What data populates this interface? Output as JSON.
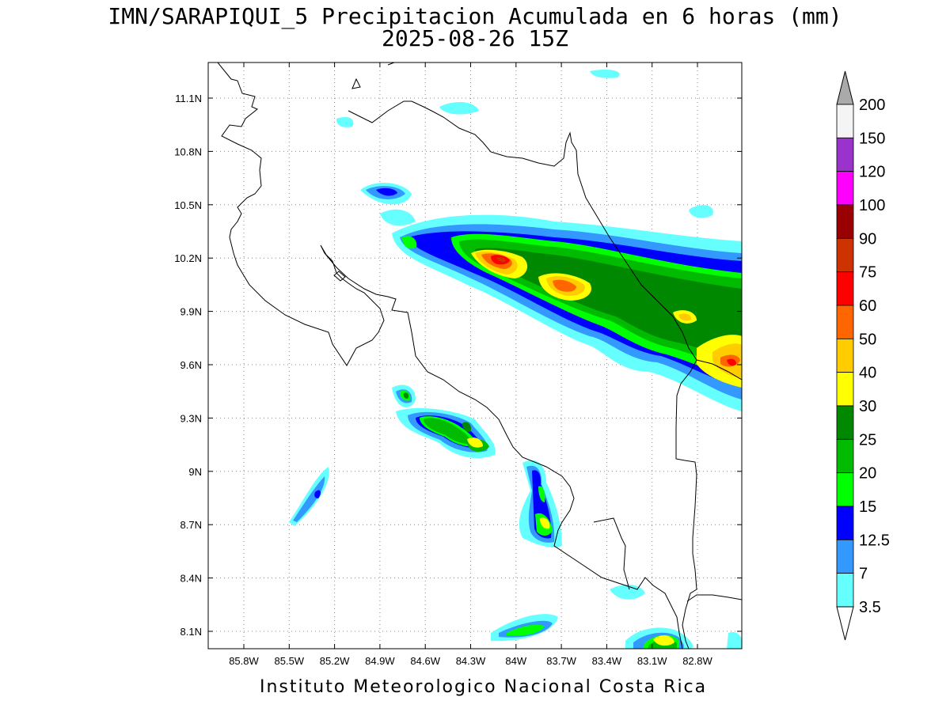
{
  "title": {
    "line1": "IMN/SARAPIQUI_5 Precipitacion Acumulada en 6 horas (mm)",
    "line2": "2025-08-26 15Z"
  },
  "footer": "Instituto Meteorologico Nacional Costa Rica",
  "axes": {
    "lon_labels": [
      "85.8W",
      "85.5W",
      "85.2W",
      "84.9W",
      "84.6W",
      "84.3W",
      "84W",
      "83.7W",
      "83.4W",
      "83.1W",
      "82.8W"
    ],
    "lat_labels": [
      "11.1N",
      "10.8N",
      "10.5N",
      "10.2N",
      "9.9N",
      "9.6N",
      "9.3N",
      "9N",
      "8.7N",
      "8.4N",
      "8.1N"
    ]
  },
  "colorbar": {
    "labels": [
      "200",
      "150",
      "120",
      "100",
      "90",
      "75",
      "60",
      "50",
      "40",
      "30",
      "25",
      "20",
      "15",
      "12.5",
      "7",
      "3.5"
    ],
    "colors": [
      "#f4f4f4",
      "#9933cc",
      "#ff00ff",
      "#990000",
      "#cc3300",
      "#ff0000",
      "#ff6600",
      "#ffcc00",
      "#ffff00",
      "#008800",
      "#00bb00",
      "#00ff00",
      "#0000ff",
      "#3399ff",
      "#66ffff"
    ],
    "over_color": "#aaaaaa"
  }
}
